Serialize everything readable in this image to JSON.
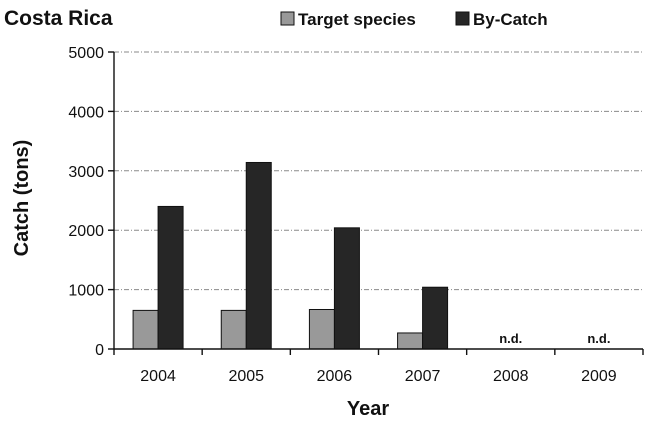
{
  "chart_data": {
    "type": "bar",
    "title": "Costa Rica",
    "xlabel": "Year",
    "ylabel": "Catch (tons)",
    "categories": [
      "2004",
      "2005",
      "2006",
      "2007",
      "2008",
      "2009"
    ],
    "ylim": [
      0,
      5000
    ],
    "yticks": [
      "0",
      "1000",
      "2000",
      "3000",
      "4000",
      "5000"
    ],
    "grid": true,
    "legend_position": "top",
    "series": [
      {
        "name": "Target species",
        "color": "#999999",
        "values": [
          650,
          650,
          665,
          270,
          null,
          null
        ]
      },
      {
        "name": "By-Catch",
        "color": "#262626",
        "values": [
          2400,
          3140,
          2040,
          1040,
          null,
          null
        ]
      }
    ],
    "annotations": [
      {
        "category": "2008",
        "text": "n.d."
      },
      {
        "category": "2009",
        "text": "n.d."
      }
    ]
  }
}
